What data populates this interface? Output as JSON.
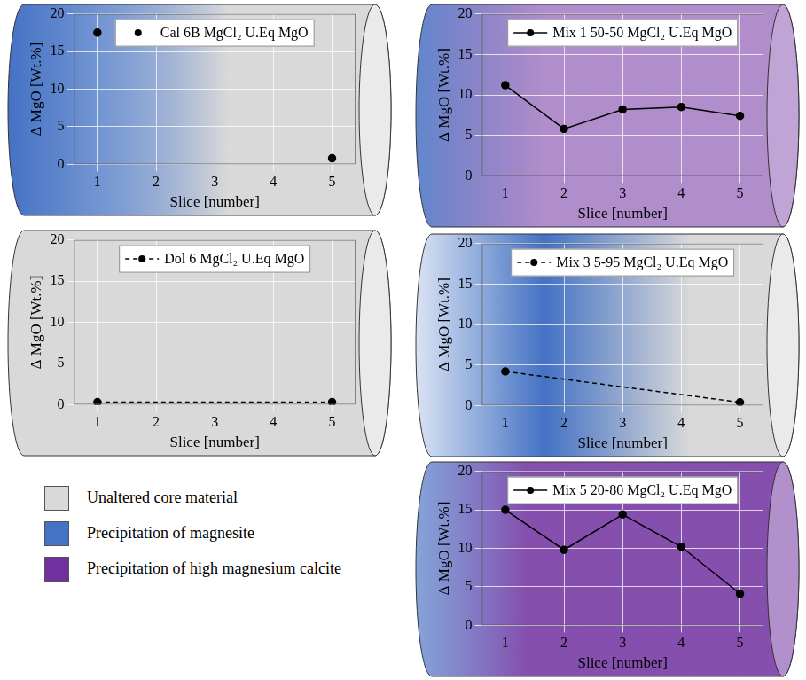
{
  "chart_data": [
    {
      "type": "scatter",
      "x_label": "Slice [number]",
      "y_label": "Δ MgO [Wt.%]",
      "x": [
        1,
        5
      ],
      "series": [
        {
          "name": "Cal 6B MgCl₂ U.Eq MgO",
          "color": "#000000",
          "marker": "circle",
          "values": [
            17.5,
            0.8
          ]
        }
      ],
      "xlim": [
        0.6,
        5.4
      ],
      "xticks": [
        1,
        2,
        3,
        4,
        5
      ],
      "ylim": [
        0,
        20
      ],
      "yticks": [
        0,
        5,
        10,
        15,
        20
      ],
      "grid": true,
      "legend": "top"
    },
    {
      "type": "line",
      "x_label": "Slice [number]",
      "y_label": "Δ MgO [Wt.%]",
      "x": [
        1,
        2,
        3,
        4,
        5
      ],
      "series": [
        {
          "name": "Mix 1 50-50 MgCl₂ U.Eq MgO",
          "color": "#000000",
          "marker": "circle",
          "line_style": "solid",
          "values": [
            11.2,
            5.8,
            8.2,
            8.5,
            7.4
          ]
        }
      ],
      "xlim": [
        0.6,
        5.4
      ],
      "xticks": [
        1,
        2,
        3,
        4,
        5
      ],
      "ylim": [
        0,
        20
      ],
      "yticks": [
        0,
        5,
        10,
        15,
        20
      ],
      "grid": true,
      "legend": "top"
    },
    {
      "type": "line",
      "x_label": "Slice [number]",
      "y_label": "Δ MgO [Wt.%]",
      "x": [
        1,
        5
      ],
      "series": [
        {
          "name": "Dol 6 MgCl₂ U.Eq MgO",
          "color": "#000000",
          "marker": "circle",
          "line_style": "dashed",
          "values": [
            0.3,
            0.3
          ]
        }
      ],
      "xlim": [
        0.6,
        5.4
      ],
      "xticks": [
        1,
        2,
        3,
        4,
        5
      ],
      "ylim": [
        0,
        20
      ],
      "yticks": [
        0,
        5,
        10,
        15,
        20
      ],
      "grid": true,
      "legend": "top"
    },
    {
      "type": "line",
      "x_label": "Slice [number]",
      "y_label": "Δ MgO [Wt.%]",
      "x": [
        1,
        5
      ],
      "series": [
        {
          "name": "Mix 3 5-95 MgCl₂ U.Eq MgO",
          "color": "#000000",
          "marker": "circle",
          "line_style": "dashed",
          "values": [
            4.2,
            0.4
          ]
        }
      ],
      "xlim": [
        0.6,
        5.4
      ],
      "xticks": [
        1,
        2,
        3,
        4,
        5
      ],
      "ylim": [
        0,
        20
      ],
      "yticks": [
        0,
        5,
        10,
        15,
        20
      ],
      "grid": true,
      "legend": "top"
    },
    {
      "type": "line",
      "x_label": "Slice [number]",
      "y_label": "Δ MgO [Wt.%]",
      "x": [
        1,
        2,
        3,
        4,
        5
      ],
      "series": [
        {
          "name": "Mix 5 20-80 MgCl₂ U.Eq MgO",
          "color": "#000000",
          "marker": "circle",
          "line_style": "solid",
          "values": [
            15.0,
            9.8,
            14.4,
            10.2,
            4.1
          ]
        }
      ],
      "xlim": [
        0.6,
        5.4
      ],
      "xticks": [
        1,
        2,
        3,
        4,
        5
      ],
      "ylim": [
        0,
        20
      ],
      "yticks": [
        0,
        5,
        10,
        15,
        20
      ],
      "grid": true,
      "legend": "top"
    }
  ],
  "key": [
    {
      "label": "Unaltered core material",
      "color": "#d9d9d9"
    },
    {
      "label": "Precipitation of magnesite",
      "color": "#4472c4"
    },
    {
      "label": "Precipitation of high magnesium calcite",
      "color": "#7030a0"
    }
  ]
}
